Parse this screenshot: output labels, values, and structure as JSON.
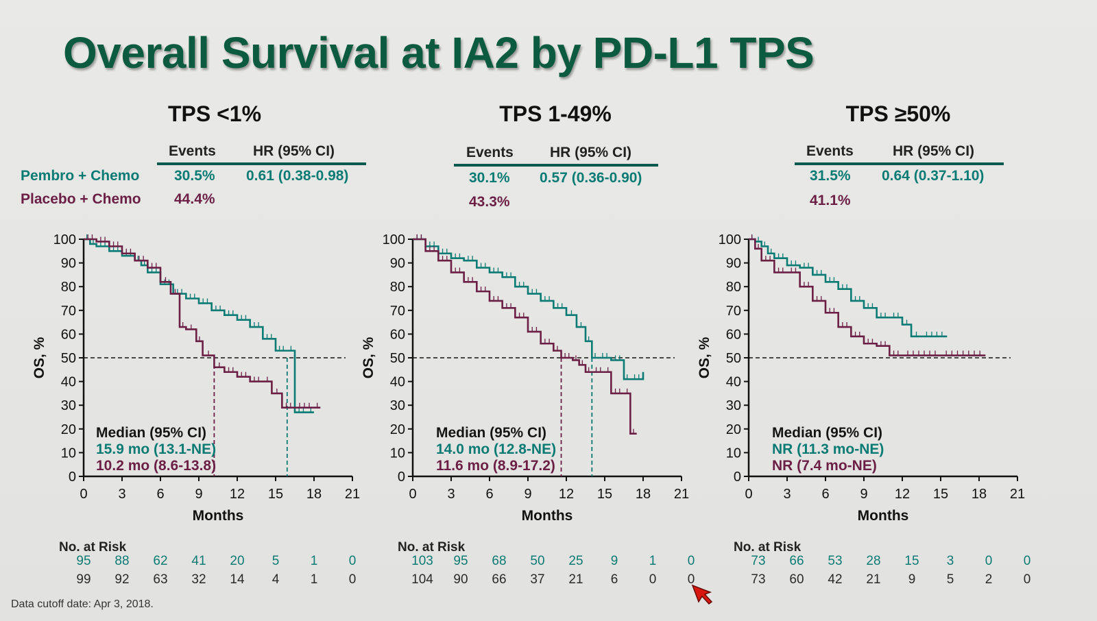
{
  "slide": {
    "title": "Overall Survival at IA2 by PD-L1 TPS",
    "footnote": "Data cutoff date: Apr 3, 2018."
  },
  "legend": {
    "pembro_label": "Pembro + Chemo",
    "placebo_label": "Placebo + Chemo"
  },
  "colors": {
    "pembro": "#0a7b74",
    "placebo": "#6b1f45",
    "title": "#0c5a3f"
  },
  "table_headers": {
    "events": "Events",
    "hr": "HR (95% CI)"
  },
  "panels": [
    {
      "title": "TPS <1%",
      "pembro_events": "30.5%",
      "pembro_hr": "0.61 (0.38-0.98)",
      "placebo_events": "44.4%",
      "median_title": "Median (95% CI)",
      "median_pembro": "15.9 mo (13.1-NE)",
      "median_placebo": "10.2 mo (8.6-13.8)",
      "risk_title": "No. at Risk",
      "risk_pembro": [
        "95",
        "88",
        "62",
        "41",
        "20",
        "5",
        "1",
        "0"
      ],
      "risk_placebo": [
        "99",
        "92",
        "63",
        "32",
        "14",
        "4",
        "1",
        "0"
      ]
    },
    {
      "title": "TPS 1-49%",
      "pembro_events": "30.1%",
      "pembro_hr": "0.57 (0.36-0.90)",
      "placebo_events": "43.3%",
      "median_title": "Median (95% CI)",
      "median_pembro": "14.0 mo (12.8-NE)",
      "median_placebo": "11.6 mo (8.9-17.2)",
      "risk_title": "No. at Risk",
      "risk_pembro": [
        "103",
        "95",
        "68",
        "50",
        "25",
        "9",
        "1",
        "0"
      ],
      "risk_placebo": [
        "104",
        "90",
        "66",
        "37",
        "21",
        "6",
        "0",
        "0"
      ]
    },
    {
      "title": "TPS ≥50%",
      "pembro_events": "31.5%",
      "pembro_hr": "0.64 (0.37-1.10)",
      "placebo_events": "41.1%",
      "median_title": "Median (95% CI)",
      "median_pembro": "NR (11.3 mo-NE)",
      "median_placebo": "NR (7.4 mo-NE)",
      "risk_title": "No. at Risk",
      "risk_pembro": [
        "73",
        "66",
        "53",
        "28",
        "15",
        "3",
        "0",
        "0"
      ],
      "risk_placebo": [
        "73",
        "60",
        "42",
        "21",
        "9",
        "5",
        "2",
        "0"
      ]
    }
  ],
  "chart_data": [
    {
      "type": "line",
      "title": "TPS <1%",
      "xlabel": "Months",
      "ylabel": "OS, %",
      "xlim": [
        0,
        21
      ],
      "ylim": [
        0,
        100
      ],
      "xticks": [
        0,
        3,
        6,
        9,
        12,
        15,
        18,
        21
      ],
      "yticks": [
        0,
        10,
        20,
        30,
        40,
        50,
        60,
        70,
        80,
        90,
        100
      ],
      "reference_y": 50,
      "median_drops": [
        {
          "series": "Placebo + Chemo",
          "x": 10.2
        },
        {
          "series": "Pembro + Chemo",
          "x": 15.9
        }
      ],
      "series": [
        {
          "name": "Pembro + Chemo",
          "x": [
            0,
            0.5,
            1,
            2,
            3,
            4,
            4.5,
            5,
            6,
            7,
            8,
            9,
            10,
            11,
            12,
            13,
            14,
            15,
            15.9,
            16.5,
            17.5,
            18
          ],
          "y": [
            100,
            98,
            97,
            95,
            93,
            91,
            89,
            86,
            81,
            77,
            75,
            73,
            70,
            68,
            66,
            63,
            58,
            53,
            53,
            27,
            27,
            27
          ]
        },
        {
          "name": "Placebo + Chemo",
          "x": [
            0,
            1,
            2,
            3,
            4,
            5,
            6,
            6.8,
            7.5,
            8,
            8.8,
            9.3,
            10.2,
            11,
            12,
            13,
            14,
            14.7,
            15.5,
            16.5,
            18,
            18.5
          ],
          "y": [
            100,
            99,
            97,
            94,
            91,
            88,
            82,
            77,
            63,
            62,
            57,
            51,
            46,
            44,
            42,
            40,
            40,
            35,
            29,
            29,
            29,
            29
          ]
        }
      ]
    },
    {
      "type": "line",
      "title": "TPS 1-49%",
      "xlabel": "Months",
      "ylabel": "OS, %",
      "xlim": [
        0,
        21
      ],
      "ylim": [
        0,
        100
      ],
      "xticks": [
        0,
        3,
        6,
        9,
        12,
        15,
        18,
        21
      ],
      "yticks": [
        0,
        10,
        20,
        30,
        40,
        50,
        60,
        70,
        80,
        90,
        100
      ],
      "reference_y": 50,
      "median_drops": [
        {
          "series": "Placebo + Chemo",
          "x": 11.6
        },
        {
          "series": "Pembro + Chemo",
          "x": 14.0
        }
      ],
      "series": [
        {
          "name": "Pembro + Chemo",
          "x": [
            0,
            1,
            2,
            3,
            4,
            5,
            6,
            7,
            8,
            9,
            10,
            11,
            12,
            12.8,
            13.5,
            14,
            14.5,
            15.5,
            16.5,
            17,
            18
          ],
          "y": [
            100,
            97,
            94,
            92,
            91,
            88,
            86,
            84,
            80,
            77,
            74,
            71,
            68,
            63,
            57,
            50,
            50,
            49,
            41,
            41,
            44
          ]
        },
        {
          "name": "Placebo + Chemo",
          "x": [
            0,
            1,
            2,
            3,
            4,
            5,
            6,
            7,
            8,
            9,
            10,
            11,
            11.6,
            12.5,
            13,
            13.5,
            14,
            15,
            15.5,
            16.5,
            17,
            17.5
          ],
          "y": [
            100,
            95,
            91,
            86,
            82,
            78,
            74,
            71,
            67,
            61,
            56,
            53,
            50,
            49,
            47,
            44,
            44,
            44,
            35,
            35,
            18,
            18
          ]
        }
      ]
    },
    {
      "type": "line",
      "title": "TPS ≥50%",
      "xlabel": "Months",
      "ylabel": "OS, %",
      "xlim": [
        0,
        21
      ],
      "ylim": [
        0,
        100
      ],
      "xticks": [
        0,
        3,
        6,
        9,
        12,
        15,
        18,
        21
      ],
      "yticks": [
        0,
        10,
        20,
        30,
        40,
        50,
        60,
        70,
        80,
        90,
        100
      ],
      "reference_y": 50,
      "median_drops": [],
      "series": [
        {
          "name": "Pembro + Chemo",
          "x": [
            0,
            0.5,
            1,
            1.5,
            2,
            3,
            4,
            5,
            6,
            7,
            8,
            9,
            10,
            11,
            12,
            12.7,
            13.5,
            15.5
          ],
          "y": [
            100,
            99,
            97,
            94,
            92,
            89,
            88,
            85,
            82,
            79,
            74,
            71,
            67,
            67,
            64,
            59,
            59,
            59
          ]
        },
        {
          "name": "Placebo + Chemo",
          "x": [
            0,
            0.5,
            1,
            2,
            3,
            4,
            5,
            6,
            7,
            8,
            9,
            10,
            11,
            12,
            15,
            18.5
          ],
          "y": [
            100,
            96,
            91,
            86,
            86,
            80,
            74,
            69,
            63,
            59,
            56,
            55,
            51,
            51,
            51,
            51
          ]
        }
      ]
    }
  ]
}
